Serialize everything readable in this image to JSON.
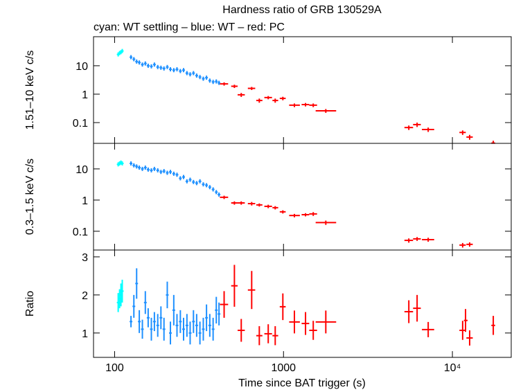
{
  "chart_data": {
    "type": "scatter",
    "title": "Hardness ratio of GRB 130529A",
    "subtitle": "cyan: WT settling – blue: WT – red: PC",
    "xlabel": "Time since BAT trigger (s)",
    "log_x": true,
    "xlim": [
      75,
      22300
    ],
    "xticks": [
      100,
      1000,
      {
        "value": 10000,
        "label": "10⁴"
      }
    ],
    "panels": [
      {
        "ylabel": "1.51–10 keV c/s",
        "log_y": true,
        "ylim": [
          0.0186,
          105
        ],
        "yticks": [
          0.1,
          1,
          10
        ],
        "series": [
          {
            "color": "#00ffff",
            "x": [
              105,
              107,
              109,
              111
            ],
            "values": [
              25,
              28,
              30,
              33
            ]
          },
          {
            "color": "#1e90ff",
            "x": [
              125,
              130,
              135,
              140,
              146,
              152,
              158,
              165,
              172,
              180,
              188,
              196,
              205,
              214,
              224,
              234,
              245,
              256,
              268,
              280,
              293,
              306,
              320,
              335,
              350,
              366,
              383,
              400,
              415
            ],
            "values": [
              20,
              17,
              14,
              13,
              11,
              12,
              10,
              9.5,
              11,
              9,
              8.5,
              8,
              9,
              7.5,
              7,
              7.5,
              6.5,
              7,
              5.5,
              5,
              5.5,
              4.5,
              4,
              3.5,
              3.8,
              3,
              2.7,
              2.8,
              2.5
            ]
          },
          {
            "color": "#ff0000",
            "x": [
              445,
              512,
              562,
              648,
              719,
              812,
              893,
              991,
              1160,
              1350,
              1500,
              1780,
              5520,
              6180,
              7190,
              11500,
              12650,
              17460
            ],
            "x_lo": [
              420,
              490,
              535,
              615,
              690,
              770,
              860,
              950,
              1080,
              1280,
              1420,
              1550,
              5200,
              5850,
              6600,
              11000,
              12100,
              17000
            ],
            "x_hi": [
              470,
              535,
              590,
              680,
              750,
              855,
              930,
              1030,
              1250,
              1420,
              1580,
              2050,
              5850,
              6500,
              7800,
              12000,
              13200,
              17900
            ],
            "values": [
              2.3,
              1.9,
              0.95,
              1.6,
              0.6,
              0.76,
              0.6,
              0.71,
              0.41,
              0.43,
              0.41,
              0.26,
              0.067,
              0.085,
              0.057,
              0.045,
              0.031,
              0.019
            ],
            "errors": [
              0.3,
              0.25,
              0.15,
              0.2,
              0.1,
              0.1,
              0.1,
              0.1,
              0.06,
              0.06,
              0.06,
              0.04,
              0.012,
              0.015,
              0.01,
              0.008,
              0.006,
              0.004
            ]
          }
        ]
      },
      {
        "ylabel": "0.3–1.5 keV c/s",
        "log_y": true,
        "ylim": [
          0.025,
          66
        ],
        "yticks": [
          0.1,
          1,
          10
        ],
        "series": [
          {
            "color": "#00ffff",
            "x": [
              105,
              107,
              109,
              111
            ],
            "values": [
              14,
              15,
              16,
              15
            ]
          },
          {
            "color": "#1e90ff",
            "x": [
              125,
              130,
              135,
              140,
              146,
              152,
              158,
              165,
              172,
              180,
              188,
              196,
              205,
              214,
              224,
              234,
              245,
              256,
              268,
              280,
              293,
              306,
              320,
              335,
              350,
              366,
              383,
              400,
              415
            ],
            "values": [
              15,
              13,
              12,
              11,
              10,
              11,
              9.5,
              9,
              10,
              9,
              8,
              8.5,
              7.5,
              8,
              7,
              6.5,
              5,
              5.5,
              4,
              4.5,
              3.8,
              3.5,
              4,
              3.2,
              3,
              2.6,
              2.2,
              1.8,
              1.5
            ]
          },
          {
            "color": "#ff0000",
            "x": [
              445,
              512,
              562,
              648,
              719,
              812,
              893,
              991,
              1160,
              1350,
              1500,
              1780,
              5520,
              6180,
              7190,
              11500,
              12650
            ],
            "x_lo": [
              420,
              490,
              535,
              615,
              690,
              770,
              860,
              950,
              1080,
              1280,
              1420,
              1550,
              5200,
              5850,
              6600,
              11000,
              12100
            ],
            "x_hi": [
              470,
              535,
              590,
              680,
              750,
              855,
              930,
              1030,
              1250,
              1420,
              1580,
              2050,
              5850,
              6500,
              7800,
              12000,
              13200
            ],
            "values": [
              1.23,
              0.81,
              0.81,
              0.77,
              0.7,
              0.63,
              0.57,
              0.42,
              0.32,
              0.34,
              0.36,
              0.19,
              0.051,
              0.057,
              0.054,
              0.036,
              0.038
            ],
            "errors": [
              0.15,
              0.1,
              0.1,
              0.1,
              0.08,
              0.08,
              0.07,
              0.05,
              0.04,
              0.04,
              0.05,
              0.03,
              0.008,
              0.008,
              0.008,
              0.006,
              0.006
            ]
          }
        ]
      },
      {
        "ylabel": "Ratio",
        "log_y": false,
        "ylim": [
          0.36,
          3.18
        ],
        "yticks": [
          1,
          2,
          3
        ],
        "series": [
          {
            "color": "#00ffff",
            "x": [
              105,
              107,
              109,
              111
            ],
            "values": [
              1.8,
              1.9,
              2.0,
              2.1
            ],
            "errors": [
              0.25,
              0.25,
              0.3,
              0.3
            ]
          },
          {
            "color": "#1e90ff",
            "x": [
              125,
              130,
              135,
              140,
              146,
              152,
              158,
              165,
              172,
              180,
              188,
              196,
              205,
              214,
              224,
              234,
              245,
              256,
              268,
              280,
              293,
              306,
              320,
              335,
              350,
              366,
              383,
              400,
              415
            ],
            "values": [
              1.3,
              1.7,
              2.3,
              1.3,
              1.1,
              1.8,
              1.4,
              1.1,
              1.3,
              1.2,
              1.4,
              1.1,
              2.0,
              1.0,
              1.6,
              1.2,
              1.3,
              1.1,
              1.2,
              1.0,
              1.3,
              1.2,
              1.0,
              1.1,
              1.4,
              1.2,
              1.1,
              1.6,
              1.5
            ],
            "errors": [
              0.15,
              0.3,
              0.4,
              0.3,
              0.25,
              0.3,
              0.25,
              0.3,
              0.25,
              0.3,
              0.3,
              0.3,
              0.35,
              0.3,
              0.4,
              0.3,
              0.3,
              0.3,
              0.3,
              0.3,
              0.3,
              0.3,
              0.3,
              0.3,
              0.35,
              0.3,
              0.3,
              0.35,
              0.3
            ]
          },
          {
            "color": "#ff0000",
            "x": [
              445,
              512,
              562,
              648,
              719,
              812,
              893,
              991,
              1160,
              1350,
              1500,
              1780,
              5520,
              6180,
              7190,
              11500,
              11960,
              12650,
              17460
            ],
            "x_lo": [
              420,
              490,
              535,
              615,
              690,
              770,
              860,
              950,
              1080,
              1280,
              1420,
              1550,
              5200,
              5850,
              6600,
              11000,
              11700,
              12100,
              17000
            ],
            "x_hi": [
              470,
              535,
              590,
              680,
              750,
              855,
              930,
              1030,
              1250,
              1420,
              1580,
              2050,
              5850,
              6500,
              7800,
              12000,
              12300,
              13200,
              17900
            ],
            "values": [
              1.75,
              2.24,
              1.07,
              2.13,
              0.93,
              0.98,
              0.93,
              1.69,
              1.29,
              1.25,
              1.07,
              1.29,
              1.56,
              1.65,
              1.09,
              1.07,
              1.33,
              0.87,
              1.2
            ],
            "errors": [
              0.35,
              0.55,
              0.3,
              0.5,
              0.25,
              0.25,
              0.25,
              0.35,
              0.3,
              0.3,
              0.25,
              0.3,
              0.3,
              0.35,
              0.2,
              0.25,
              0.3,
              0.2,
              0.25
            ]
          }
        ]
      }
    ]
  }
}
